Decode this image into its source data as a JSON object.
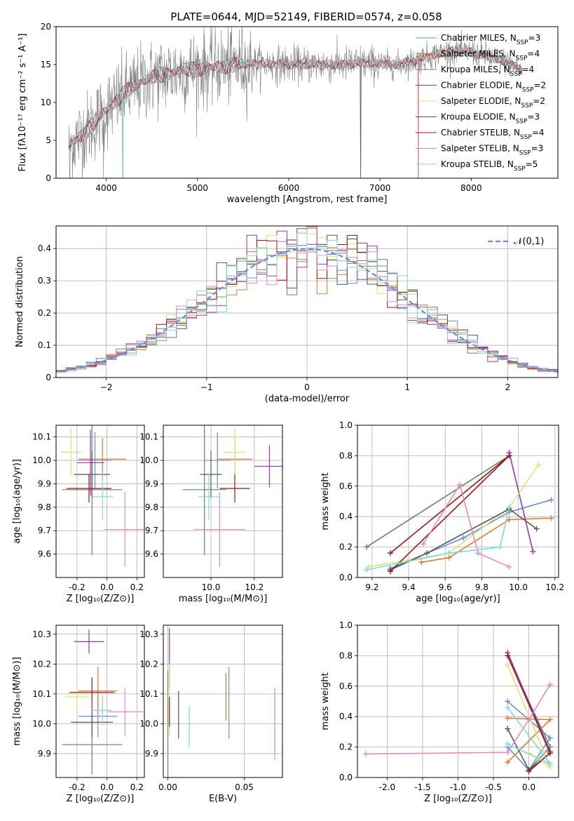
{
  "title": "PLATE=0644, MJD=52149, FIBERID=0574, z=0.058",
  "colors": [
    "#6a8fd8",
    "#e07b2a",
    "#5e8a5e",
    "#9b35b3",
    "#d6e86a",
    "#555555",
    "#a01515",
    "#e889bd",
    "#7fd9e2"
  ],
  "chart_data": [
    {
      "id": "spectrum",
      "type": "line",
      "title": "PLATE=0644, MJD=52149, FIBERID=0574, z=0.058",
      "xlabel": "wavelength [Angstrom, rest frame]",
      "ylabel": "Flux [fλ10⁻¹⁷ erg cm⁻² s⁻¹ A⁻¹]",
      "xlim": [
        3450,
        8950
      ],
      "ylim": [
        0,
        20
      ],
      "xticks": [
        4000,
        5000,
        6000,
        7000,
        8000
      ],
      "yticks": [
        0,
        5,
        10,
        15,
        20
      ],
      "legend_position": "right",
      "data_color": "#808080",
      "continuum": {
        "x": [
          3600,
          3800,
          4000,
          4200,
          4400,
          4600,
          4800,
          5000,
          5200,
          5400,
          5600,
          5800,
          6000,
          6200,
          6400,
          6600,
          6800,
          7000,
          7200,
          7400,
          7600,
          7800,
          8000,
          8200,
          8400,
          8600
        ],
        "y": [
          4.5,
          6.5,
          9.0,
          11.2,
          12.7,
          13.6,
          14.2,
          14.5,
          14.8,
          15.0,
          15.1,
          15.1,
          15.0,
          15.0,
          15.0,
          15.0,
          15.2,
          15.1,
          15.0,
          15.6,
          16.3,
          16.8,
          16.6,
          16.0,
          15.2,
          14.0
        ]
      },
      "dropouts": [
        3600,
        3970,
        4180,
        6790,
        7420
      ],
      "series": [
        {
          "name": "Chabrier MILES, N_SSP=3",
          "label": "Chabrier MILES, N",
          "sub": "SSP",
          "eq": "=3"
        },
        {
          "name": "Salpeter MILES, N_SSP=4",
          "label": "Salpeter MILES, N",
          "sub": "SSP",
          "eq": "=4"
        },
        {
          "name": "Kroupa MILES, N_SSP=4",
          "label": "Kroupa MILES, N",
          "sub": "SSP",
          "eq": "=4"
        },
        {
          "name": "Chabrier ELODIE, N_SSP=2",
          "label": "Chabrier ELODIE, N",
          "sub": "SSP",
          "eq": "=2"
        },
        {
          "name": "Salpeter ELODIE, N_SSP=2",
          "label": "Salpeter ELODIE, N",
          "sub": "SSP",
          "eq": "=2"
        },
        {
          "name": "Kroupa ELODIE, N_SSP=3",
          "label": "Kroupa ELODIE, N",
          "sub": "SSP",
          "eq": "=3"
        },
        {
          "name": "Chabrier STELIB, N_SSP=4",
          "label": "Chabrier STELIB, N",
          "sub": "SSP",
          "eq": "=4"
        },
        {
          "name": "Salpeter STELIB, N_SSP=3",
          "label": "Salpeter STELIB, N",
          "sub": "SSP",
          "eq": "=3"
        },
        {
          "name": "Kroupa STELIB, N_SSP=5",
          "label": "Kroupa STELIB, N",
          "sub": "SSP",
          "eq": "=5"
        }
      ]
    },
    {
      "id": "residuals",
      "type": "histogram",
      "xlabel": "(data-model)/error",
      "ylabel": "Normed distribution",
      "xlim": [
        -2.5,
        2.5
      ],
      "ylim": [
        0,
        0.47
      ],
      "xticks": [
        -2,
        -1,
        0,
        1,
        2
      ],
      "yticks": [
        0.0,
        0.1,
        0.2,
        0.3,
        0.4
      ],
      "grid": true,
      "bin_width": 0.1,
      "legend": "𝒩(0,1)",
      "legend_position": "top-right",
      "normal": {
        "mean": 0,
        "sigma": 1,
        "color": "#6a8fd8"
      }
    },
    {
      "id": "age-vs-Z",
      "type": "errorbar",
      "xlabel": "Z [log₁₀(Z/Z⊙)]",
      "ylabel": "age  [log₁₀(age/yr)]",
      "xlim": [
        -0.34,
        0.25
      ],
      "ylim": [
        9.5,
        10.15
      ],
      "xticks": [
        -0.2,
        0.0,
        0.2
      ],
      "yticks": [
        9.6,
        9.7,
        9.8,
        9.9,
        10.0,
        10.1
      ],
      "points": [
        {
          "x": -0.08,
          "xerr": 0.11,
          "y": 10.0,
          "yerr": 0.12
        },
        {
          "x": -0.03,
          "xerr": 0.16,
          "y": 10.005,
          "yerr": 0.09
        },
        {
          "x": -0.1,
          "xerr": 0.2,
          "y": 9.875,
          "yerr": 0.28
        },
        {
          "x": -0.11,
          "xerr": 0.09,
          "y": 9.99,
          "yerr": 0.14
        },
        {
          "x": -0.24,
          "xerr": 0.07,
          "y": 10.035,
          "yerr": 0.1
        },
        {
          "x": -0.1,
          "xerr": 0.12,
          "y": 9.94,
          "yerr": 0.1
        },
        {
          "x": -0.12,
          "xerr": 0.15,
          "y": 9.88,
          "yerr": 0.06
        },
        {
          "x": 0.12,
          "xerr": 0.14,
          "y": 9.705,
          "yerr": 0.16
        },
        {
          "x": -0.03,
          "xerr": 0.07,
          "y": 9.845,
          "yerr": 0.1
        }
      ]
    },
    {
      "id": "age-vs-mass",
      "type": "errorbar",
      "xlabel": "mass [log₁₀(M/M⊙)]",
      "ylabel": "",
      "xlim": [
        9.78,
        10.33
      ],
      "ylim": [
        9.5,
        10.15
      ],
      "xticks": [
        10.0,
        10.2
      ],
      "yticks": [
        9.6,
        9.7,
        9.8,
        9.9,
        10.0,
        10.1
      ],
      "points": [
        {
          "x": 10.03,
          "xerr": 0.06,
          "y": 10.0,
          "yerr": 0.12
        },
        {
          "x": 10.11,
          "xerr": 0.08,
          "y": 10.005,
          "yerr": 0.09
        },
        {
          "x": 9.97,
          "xerr": 0.1,
          "y": 9.875,
          "yerr": 0.28
        },
        {
          "x": 10.27,
          "xerr": 0.07,
          "y": 9.975,
          "yerr": 0.09
        },
        {
          "x": 10.11,
          "xerr": 0.05,
          "y": 10.035,
          "yerr": 0.1
        },
        {
          "x": 10.0,
          "xerr": 0.05,
          "y": 9.94,
          "yerr": 0.1
        },
        {
          "x": 10.11,
          "xerr": 0.07,
          "y": 9.88,
          "yerr": 0.06
        },
        {
          "x": 10.04,
          "xerr": 0.12,
          "y": 9.705,
          "yerr": 0.16
        },
        {
          "x": 9.99,
          "xerr": 0.05,
          "y": 9.845,
          "yerr": 0.1
        }
      ]
    },
    {
      "id": "weight-vs-age",
      "type": "line",
      "xlabel": "age  [log₁₀(age/yr)]",
      "ylabel": "mass weight",
      "xlim": [
        9.12,
        10.22
      ],
      "ylim": [
        0,
        1
      ],
      "xticks": [
        9.2,
        9.4,
        9.6,
        9.8,
        10.0,
        10.2
      ],
      "yticks": [
        0.0,
        0.2,
        0.4,
        0.6,
        0.8,
        1.0
      ],
      "series": [
        {
          "x": [
            9.3,
            9.7,
            9.95,
            10.18
          ],
          "y": [
            0.06,
            0.26,
            0.43,
            0.51
          ]
        },
        {
          "x": [
            9.47,
            9.62,
            9.95,
            10.18
          ],
          "y": [
            0.1,
            0.13,
            0.38,
            0.39
          ]
        },
        {
          "x": [
            9.17,
            9.95
          ],
          "y": [
            0.2,
            0.8
          ]
        },
        {
          "x": [
            9.95,
            10.08
          ],
          "y": [
            0.82,
            0.17
          ]
        },
        {
          "x": [
            9.18,
            9.62,
            9.95,
            10.11
          ],
          "y": [
            0.07,
            0.16,
            0.46,
            0.74
          ]
        },
        {
          "x": [
            9.3,
            9.5,
            9.95,
            10.1
          ],
          "y": [
            0.05,
            0.16,
            0.45,
            0.32
          ]
        },
        {
          "x": [
            9.3,
            9.95,
            9.3
          ],
          "y": [
            0.16,
            0.8,
            0.04
          ]
        },
        {
          "x": [
            9.48,
            9.68,
            9.78,
            9.95
          ],
          "y": [
            0.22,
            0.61,
            0.16,
            0.07
          ]
        },
        {
          "x": [
            9.17,
            9.62,
            9.9,
            9.95
          ],
          "y": [
            0.05,
            0.16,
            0.2,
            0.46
          ]
        }
      ]
    },
    {
      "id": "mass-vs-Z",
      "type": "errorbar",
      "xlabel": "Z [log₁₀(Z/Z⊙)]",
      "ylabel": "mass [log₁₀(M/M⊙)]",
      "xlim": [
        -0.34,
        0.25
      ],
      "ylim": [
        9.82,
        10.33
      ],
      "xticks": [
        -0.2,
        0.0,
        0.2
      ],
      "yticks": [
        9.9,
        10.0,
        10.1,
        10.2,
        10.3
      ],
      "points": [
        {
          "x": -0.06,
          "xerr": 0.13,
          "y": 10.025,
          "yerr": 0.07
        },
        {
          "x": -0.06,
          "xerr": 0.13,
          "y": 10.11,
          "yerr": 0.08
        },
        {
          "x": -0.1,
          "xerr": 0.2,
          "y": 9.93,
          "yerr": 0.1
        },
        {
          "x": -0.12,
          "xerr": 0.1,
          "y": 10.275,
          "yerr": 0.04
        },
        {
          "x": -0.2,
          "xerr": 0.08,
          "y": 10.09,
          "yerr": 0.05
        },
        {
          "x": -0.1,
          "xerr": 0.14,
          "y": 10.005,
          "yerr": 0.05
        },
        {
          "x": -0.1,
          "xerr": 0.15,
          "y": 10.105,
          "yerr": 0.05
        },
        {
          "x": 0.12,
          "xerr": 0.12,
          "y": 10.04,
          "yerr": 0.08
        },
        {
          "x": -0.03,
          "xerr": 0.06,
          "y": 10.045,
          "yerr": 0.05
        }
      ]
    },
    {
      "id": "mass-vs-EBV",
      "type": "errorbar",
      "xlabel": "E(B-V)",
      "ylabel": "",
      "xlim": [
        -0.003,
        0.075
      ],
      "ylim": [
        9.82,
        10.33
      ],
      "xticks": [
        0.0,
        0.05
      ],
      "yticks": [
        9.9,
        10.0,
        10.1,
        10.2,
        10.3
      ],
      "tick_labels_x": [
        "0.00",
        "0.05"
      ],
      "points": [
        {
          "x": 0.04,
          "y": 10.07,
          "yerr": 0.12
        },
        {
          "x": 0.038,
          "y": 10.09,
          "yerr": 0.08
        },
        {
          "x": 0.0,
          "y": 10.0,
          "yerr": 0.18
        },
        {
          "x": 0.001,
          "y": 10.22,
          "yerr": 0.1
        },
        {
          "x": 0.001,
          "y": 10.08,
          "yerr": 0.12
        },
        {
          "x": 0.007,
          "y": 10.03,
          "yerr": 0.08
        },
        {
          "x": 0.001,
          "y": 10.04,
          "yerr": 0.05
        },
        {
          "x": 0.07,
          "y": 10.0,
          "yerr": 0.12
        },
        {
          "x": 0.014,
          "y": 9.99,
          "yerr": 0.07
        }
      ]
    },
    {
      "id": "weight-vs-Z",
      "type": "line",
      "xlabel": "Z [log₁₀(Z/Z⊙)]",
      "ylabel": "mass weight",
      "xlim": [
        -2.42,
        0.42
      ],
      "ylim": [
        0,
        1
      ],
      "xticks": [
        -2.0,
        -1.5,
        -1.0,
        -0.5,
        0.0
      ],
      "yticks": [
        0.0,
        0.2,
        0.4,
        0.6,
        0.8,
        1.0
      ],
      "series": [
        {
          "x": [
            -0.3,
            0.3,
            0.0,
            -0.3
          ],
          "y": [
            0.5,
            0.26,
            0.05,
            0.2
          ]
        },
        {
          "x": [
            -0.3,
            0.3,
            -0.3
          ],
          "y": [
            0.39,
            0.38,
            0.1
          ]
        },
        {
          "x": [
            -0.3,
            0.3,
            0.0
          ],
          "y": [
            0.8,
            0.2,
            0.05
          ]
        },
        {
          "x": [
            -0.3,
            0.3
          ],
          "y": [
            0.82,
            0.17
          ]
        },
        {
          "x": [
            -0.3,
            0.3,
            0.0
          ],
          "y": [
            0.74,
            0.07,
            0.16
          ]
        },
        {
          "x": [
            -0.3,
            0.0,
            0.3
          ],
          "y": [
            0.32,
            0.05,
            0.16
          ]
        },
        {
          "x": [
            -0.3,
            0.3,
            0.0
          ],
          "y": [
            0.8,
            0.16,
            0.04
          ]
        },
        {
          "x": [
            -2.3,
            -0.3,
            0.0,
            0.3
          ],
          "y": [
            0.155,
            0.165,
            0.38,
            0.61
          ]
        },
        {
          "x": [
            -0.3,
            0.3,
            -0.3
          ],
          "y": [
            0.46,
            0.09,
            0.22
          ]
        }
      ]
    }
  ]
}
